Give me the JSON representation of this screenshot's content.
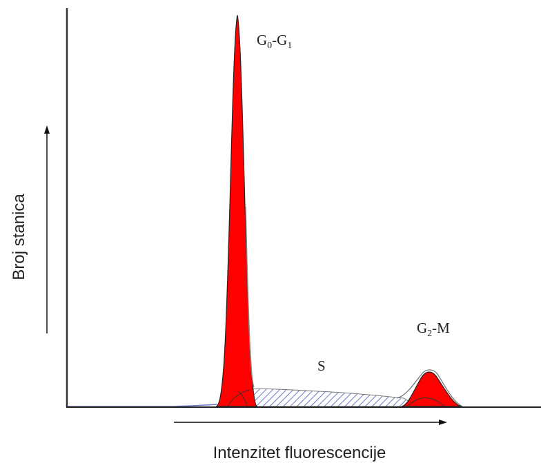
{
  "chart_data": {
    "type": "area",
    "title": "",
    "xlabel": "Intenzitet fluorescencije",
    "ylabel": "Broj stanica",
    "grid": false,
    "legend": "none",
    "colors": {
      "peak_fill": "#ff0000",
      "s_phase_hatch": "#6a78c8",
      "axis": "#333333",
      "outline": "#555555"
    },
    "annotations": [
      {
        "id": "g0g1",
        "base": "G",
        "sub1": "0",
        "mid": "-G",
        "sub2": "1"
      },
      {
        "id": "s",
        "text": "S"
      },
      {
        "id": "g2m",
        "base": "G",
        "sub": "2",
        "rest": "-M"
      }
    ]
  }
}
